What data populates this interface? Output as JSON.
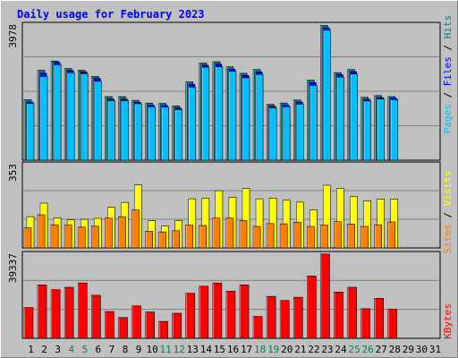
{
  "title": "Daily usage for February 2023",
  "colors": {
    "pages": "#00c0ff",
    "pages_shadow": "#008080",
    "files": "#0000ff",
    "hits": "#008080",
    "visits": "#ffff00",
    "sites": "#ff8000",
    "kbytes": "#ff0000",
    "weekend_tick": "#00805c",
    "weekday_tick": "#000000",
    "plot_bg": "#c0c0c0",
    "grid": "#808080"
  },
  "chart_data": [
    {
      "type": "bar",
      "panel": "pages-files-hits",
      "ytick_label": "3978",
      "ymax": 3978,
      "legend": [
        "Pages",
        "Files",
        "Hits"
      ],
      "x": [
        1,
        2,
        3,
        4,
        5,
        6,
        7,
        8,
        9,
        10,
        11,
        12,
        13,
        14,
        15,
        16,
        17,
        18,
        19,
        20,
        21,
        22,
        23,
        24,
        25,
        26,
        27,
        28,
        29,
        30,
        31
      ],
      "series": [
        {
          "name": "Hits",
          "values": [
            1770,
            2630,
            2900,
            2680,
            2630,
            2450,
            1860,
            1860,
            1750,
            1670,
            1660,
            1590,
            2290,
            2840,
            2880,
            2730,
            2540,
            2650,
            1630,
            1670,
            1760,
            2340,
            3940,
            2560,
            2650,
            1840,
            1890,
            1860,
            null,
            null,
            null
          ]
        },
        {
          "name": "Files",
          "values": [
            1700,
            2540,
            2860,
            2620,
            2580,
            2390,
            1790,
            1790,
            1690,
            1610,
            1600,
            1530,
            2220,
            2780,
            2810,
            2660,
            2480,
            2580,
            1580,
            1610,
            1700,
            2270,
            3870,
            2500,
            2590,
            1780,
            1830,
            1810,
            null,
            null,
            null
          ]
        },
        {
          "name": "Pages",
          "values": [
            1660,
            2450,
            2790,
            2560,
            2530,
            2310,
            1740,
            1740,
            1650,
            1560,
            1550,
            1480,
            2140,
            2720,
            2730,
            2600,
            2410,
            2510,
            1530,
            1560,
            1640,
            2190,
            3810,
            2430,
            2520,
            1730,
            1790,
            1770,
            null,
            null,
            null
          ]
        }
      ]
    },
    {
      "type": "bar",
      "panel": "visits-sites",
      "ytick_label": "353",
      "ymax": 353,
      "legend": [
        "Sites",
        "Visits"
      ],
      "x": [
        1,
        2,
        3,
        4,
        5,
        6,
        7,
        8,
        9,
        10,
        11,
        12,
        13,
        14,
        15,
        16,
        17,
        18,
        19,
        20,
        21,
        22,
        23,
        24,
        25,
        26,
        27,
        28,
        29,
        30,
        31
      ],
      "series": [
        {
          "name": "Visits",
          "values": [
            131,
            188,
            126,
            118,
            120,
            124,
            171,
            191,
            264,
            114,
            92,
            115,
            206,
            208,
            240,
            213,
            249,
            206,
            209,
            200,
            192,
            160,
            263,
            250,
            215,
            197,
            205,
            205,
            null,
            null,
            null
          ]
        },
        {
          "name": "Sites",
          "values": [
            84,
            139,
            97,
            97,
            87,
            91,
            125,
            131,
            159,
            70,
            67,
            72,
            96,
            94,
            125,
            125,
            115,
            90,
            102,
            101,
            108,
            90,
            96,
            110,
            100,
            90,
            97,
            109,
            null,
            null,
            null
          ]
        }
      ]
    },
    {
      "type": "bar",
      "panel": "kbytes",
      "ytick_label": "39337",
      "ymax": 39337,
      "legend": [
        "KBytes"
      ],
      "x": [
        1,
        2,
        3,
        4,
        5,
        6,
        7,
        8,
        9,
        10,
        11,
        12,
        13,
        14,
        15,
        16,
        17,
        18,
        19,
        20,
        21,
        22,
        23,
        24,
        25,
        26,
        27,
        28,
        29,
        30,
        31
      ],
      "series": [
        {
          "name": "KBytes",
          "values": [
            14200,
            24700,
            22500,
            23600,
            25600,
            19900,
            12400,
            9600,
            15000,
            12200,
            7800,
            11600,
            20800,
            24100,
            25600,
            21800,
            24700,
            10100,
            19400,
            17500,
            19000,
            28800,
            39000,
            21400,
            23600,
            13700,
            18500,
            13400,
            null,
            null,
            null
          ]
        }
      ]
    }
  ],
  "x_labels": [
    "1",
    "2",
    "3",
    "4",
    "5",
    "6",
    "7",
    "8",
    "9",
    "10",
    "11",
    "12",
    "13",
    "14",
    "15",
    "16",
    "17",
    "18",
    "19",
    "20",
    "21",
    "22",
    "23",
    "24",
    "25",
    "26",
    "27",
    "28",
    "29",
    "30",
    "31"
  ],
  "weekend_days": [
    4,
    5,
    11,
    12,
    18,
    19,
    25,
    26
  ]
}
